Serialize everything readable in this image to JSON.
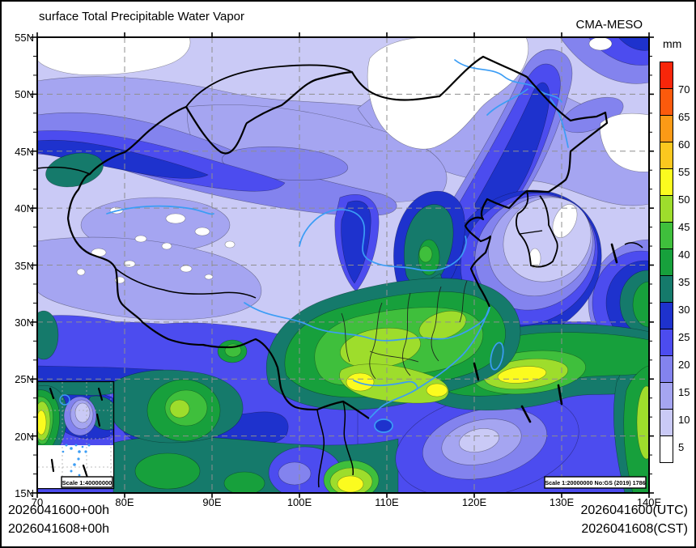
{
  "header": {
    "title": "surface Total Precipitable Water Vapor",
    "model": "CMA-MESO"
  },
  "colorbar": {
    "unit": "mm",
    "boundary_labels": [
      "5",
      "10",
      "15",
      "20",
      "25",
      "30",
      "35",
      "40",
      "45",
      "50",
      "55",
      "60",
      "65",
      "70"
    ],
    "levels": [
      {
        "range": "<5",
        "color": "#ffffff"
      },
      {
        "range": "5-10",
        "color": "#cacaf6"
      },
      {
        "range": "10-15",
        "color": "#a5a5f1"
      },
      {
        "range": "15-20",
        "color": "#8383ee"
      },
      {
        "range": "20-25",
        "color": "#4c4cef"
      },
      {
        "range": "25-30",
        "color": "#1e32cd"
      },
      {
        "range": "30-35",
        "color": "#157a6b"
      },
      {
        "range": "35-40",
        "color": "#17a03c"
      },
      {
        "range": "40-45",
        "color": "#3fbf3c"
      },
      {
        "range": "45-50",
        "color": "#9edd2c"
      },
      {
        "range": "50-55",
        "color": "#fbfb1f"
      },
      {
        "range": "55-60",
        "color": "#fbc81f"
      },
      {
        "range": "60-65",
        "color": "#fb9a16"
      },
      {
        "range": "65-70",
        "color": "#fb5a0c"
      },
      {
        "range": ">70",
        "color": "#f8260a"
      }
    ]
  },
  "axes": {
    "lat_labels": [
      "55N",
      "50N",
      "45N",
      "40N",
      "35N",
      "30N",
      "25N",
      "20N",
      "15N"
    ],
    "lon_labels": [
      "70",
      "80E",
      "90E",
      "100E",
      "110E",
      "120E",
      "130E",
      "140E"
    ]
  },
  "map": {
    "scale_main": "Scale 1:20000000 No:GS (2019) 1786",
    "scale_inset": "Scale 1:40000000"
  },
  "footer": {
    "init_time": "2026041600+00h",
    "valid_time": "2026041608+00h",
    "utc_time": "2026041600(UTC)",
    "cst_time": "2026041608(CST)"
  },
  "colors": {
    "river": "#3b9df5",
    "grid": "#8f8f8f",
    "border": "#000000"
  }
}
